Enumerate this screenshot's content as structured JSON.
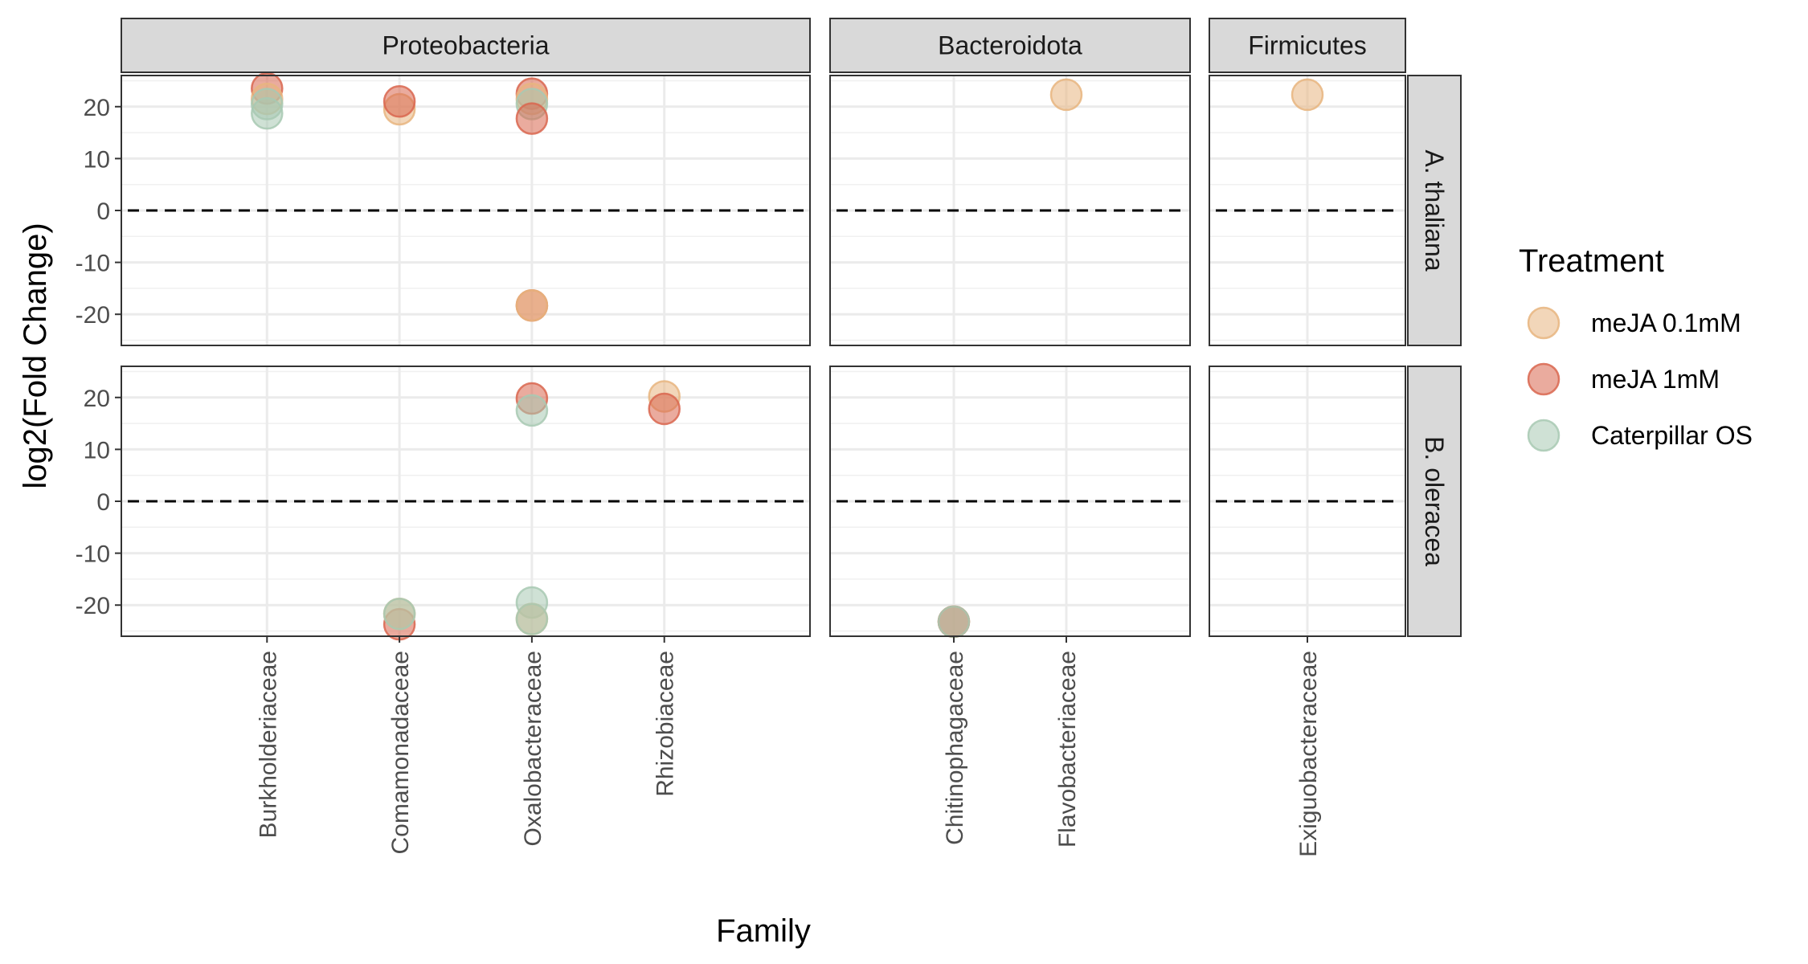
{
  "chart_data": {
    "type": "scatter",
    "xlabel": "Family",
    "ylabel": "log2(Fold Change)",
    "ylim": [
      -26,
      26
    ],
    "yticks": [
      "20",
      "10",
      "0",
      "-10",
      "-20"
    ],
    "reference_line": 0,
    "grid": true,
    "legend_position": "right",
    "legend_title": "Treatment",
    "series": [
      {
        "name": "meJA 0.1mM",
        "color": "#E8B57F"
      },
      {
        "name": "meJA 1mM",
        "color": "#D9664F"
      },
      {
        "name": "Caterpillar OS",
        "color": "#A8C9B3"
      }
    ],
    "column_facets": [
      {
        "label": "Proteobacteria",
        "families": [
          "Burkholderiaceae",
          "Comamonadaceae",
          "Oxalobacteraceae",
          "Rhizobiaceae"
        ]
      },
      {
        "label": "Bacteroidota",
        "families": [
          "Chitinophagaceae",
          "Flavobacteriaceae"
        ]
      },
      {
        "label": "Firmicutes",
        "families": [
          "Exiguobacteraceae"
        ]
      }
    ],
    "row_facets": [
      {
        "label": "A. thaliana",
        "points": [
          {
            "family": "Burkholderiaceae",
            "treatment": "meJA 1mM",
            "y": 23.5
          },
          {
            "family": "Burkholderiaceae",
            "treatment": "meJA 0.1mM",
            "y": 21.5
          },
          {
            "family": "Burkholderiaceae",
            "treatment": "Caterpillar OS",
            "y": 18.7
          },
          {
            "family": "Burkholderiaceae",
            "treatment": "Caterpillar OS",
            "y": 20.5
          },
          {
            "family": "Comamonadaceae",
            "treatment": "meJA 0.1mM",
            "y": 19.5
          },
          {
            "family": "Comamonadaceae",
            "treatment": "meJA 1mM",
            "y": 21.0
          },
          {
            "family": "Oxalobacteraceae",
            "treatment": "meJA 1mM",
            "y": 22.5
          },
          {
            "family": "Oxalobacteraceae",
            "treatment": "meJA 0.1mM",
            "y": 21.5
          },
          {
            "family": "Oxalobacteraceae",
            "treatment": "Caterpillar OS",
            "y": 20.5
          },
          {
            "family": "Oxalobacteraceae",
            "treatment": "meJA 1mM",
            "y": 17.7
          },
          {
            "family": "Oxalobacteraceae",
            "treatment": "meJA 1mM",
            "y": -18.3
          },
          {
            "family": "Oxalobacteraceae",
            "treatment": "meJA 0.1mM",
            "y": -18.3
          },
          {
            "family": "Flavobacteriaceae",
            "treatment": "meJA 0.1mM",
            "y": 22.3
          },
          {
            "family": "Exiguobacteraceae",
            "treatment": "meJA 0.1mM",
            "y": 22.3
          }
        ]
      },
      {
        "label": "B. oleracea",
        "points": [
          {
            "family": "Comamonadaceae",
            "treatment": "meJA 1mM",
            "y": -23.7
          },
          {
            "family": "Comamonadaceae",
            "treatment": "meJA 0.1mM",
            "y": -21.7
          },
          {
            "family": "Comamonadaceae",
            "treatment": "Caterpillar OS",
            "y": -21.7
          },
          {
            "family": "Oxalobacteraceae",
            "treatment": "meJA 1mM",
            "y": 19.8
          },
          {
            "family": "Oxalobacteraceae",
            "treatment": "Caterpillar OS",
            "y": 17.5
          },
          {
            "family": "Oxalobacteraceae",
            "treatment": "Caterpillar OS",
            "y": -19.5
          },
          {
            "family": "Oxalobacteraceae",
            "treatment": "meJA 0.1mM",
            "y": -22.7
          },
          {
            "family": "Oxalobacteraceae",
            "treatment": "Caterpillar OS",
            "y": -22.7
          },
          {
            "family": "Rhizobiaceae",
            "treatment": "meJA 0.1mM",
            "y": 20.2
          },
          {
            "family": "Rhizobiaceae",
            "treatment": "meJA 1mM",
            "y": 17.8
          },
          {
            "family": "Chitinophagaceae",
            "treatment": "meJA 0.1mM",
            "y": -23.2
          },
          {
            "family": "Chitinophagaceae",
            "treatment": "meJA 1mM",
            "y": -23.2
          },
          {
            "family": "Chitinophagaceae",
            "treatment": "Caterpillar OS",
            "y": -23.2
          }
        ]
      }
    ]
  }
}
